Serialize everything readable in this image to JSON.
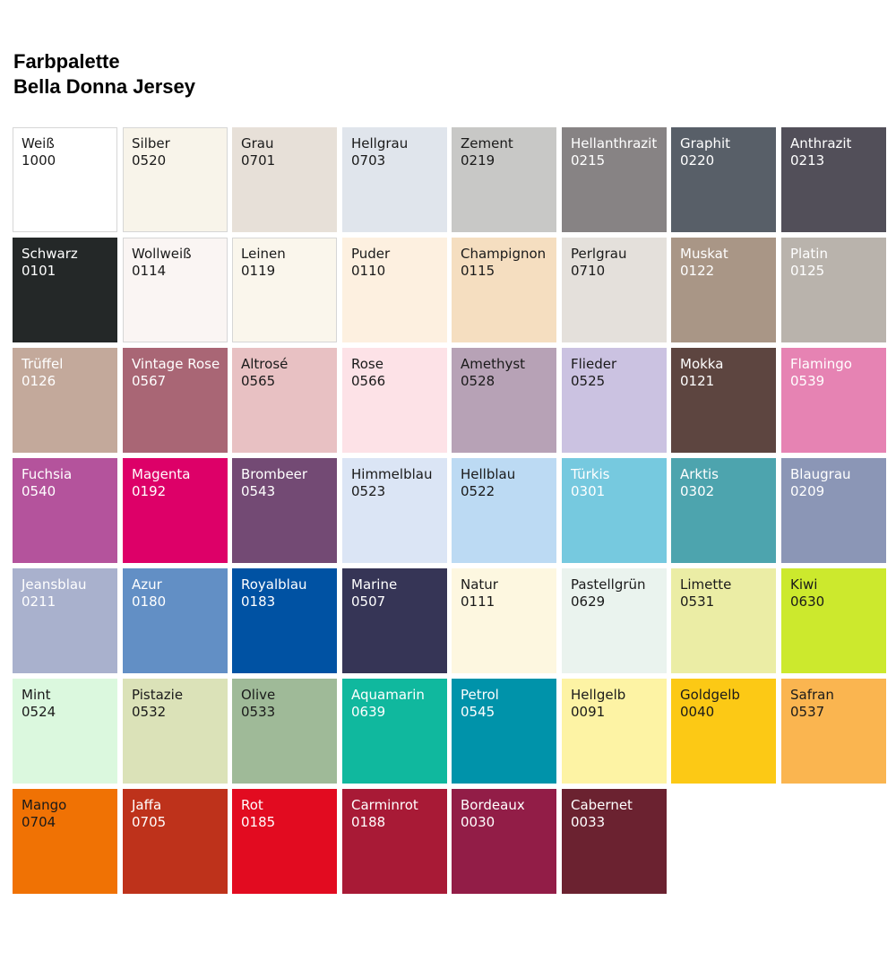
{
  "header": {
    "title_line1": "Farbpalette",
    "title_line2": "Bella Donna Jersey"
  },
  "swatches": [
    {
      "name": "Weiß",
      "code": "1000",
      "color": "#ffffff",
      "text": "#1a1a1a",
      "border": true
    },
    {
      "name": "Silber",
      "code": "0520",
      "color": "#f8f4ea",
      "text": "#1a1a1a",
      "border": true
    },
    {
      "name": "Grau",
      "code": "0701",
      "color": "#e7e0d8",
      "text": "#1a1a1a"
    },
    {
      "name": "Hellgrau",
      "code": "0703",
      "color": "#e0e5ec",
      "text": "#1a1a1a"
    },
    {
      "name": "Zement",
      "code": "0219",
      "color": "#c8c8c6",
      "text": "#1a1a1a"
    },
    {
      "name": "Hellanthrazit",
      "code": "0215",
      "color": "#878384",
      "text": "#ffffff"
    },
    {
      "name": "Graphit",
      "code": "0220",
      "color": "#585f68",
      "text": "#ffffff"
    },
    {
      "name": "Anthrazit",
      "code": "0213",
      "color": "#524f59",
      "text": "#ffffff"
    },
    {
      "name": "Schwarz",
      "code": "0101",
      "color": "#242828",
      "text": "#ffffff"
    },
    {
      "name": "Wollweiß",
      "code": "0114",
      "color": "#faf5f3",
      "text": "#1a1a1a",
      "border": true
    },
    {
      "name": "Leinen",
      "code": "0119",
      "color": "#faf6ec",
      "text": "#1a1a1a",
      "border": true
    },
    {
      "name": "Puder",
      "code": "0110",
      "color": "#fdf0e0",
      "text": "#1a1a1a"
    },
    {
      "name": "Champignon",
      "code": "0115",
      "color": "#f5dec0",
      "text": "#1a1a1a"
    },
    {
      "name": "Perlgrau",
      "code": "0710",
      "color": "#e4e0db",
      "text": "#1a1a1a"
    },
    {
      "name": "Muskat",
      "code": "0122",
      "color": "#a99686",
      "text": "#ffffff"
    },
    {
      "name": "Platin",
      "code": "0125",
      "color": "#b9b3ac",
      "text": "#ffffff"
    },
    {
      "name": "Trüffel",
      "code": "0126",
      "color": "#c3a99b",
      "text": "#ffffff"
    },
    {
      "name": "Vintage Rose",
      "code": "0567",
      "color": "#a96675",
      "text": "#ffffff"
    },
    {
      "name": "Altrosé",
      "code": "0565",
      "color": "#e8c1c3",
      "text": "#1a1a1a"
    },
    {
      "name": "Rose",
      "code": "0566",
      "color": "#fde2e7",
      "text": "#1a1a1a"
    },
    {
      "name": "Amethyst",
      "code": "0528",
      "color": "#b7a2b6",
      "text": "#1a1a1a"
    },
    {
      "name": "Flieder",
      "code": "0525",
      "color": "#cbc2e1",
      "text": "#1a1a1a"
    },
    {
      "name": "Mokka",
      "code": "0121",
      "color": "#5d4540",
      "text": "#ffffff"
    },
    {
      "name": "Flamingo",
      "code": "0539",
      "color": "#e683b3",
      "text": "#ffffff"
    },
    {
      "name": "Fuchsia",
      "code": "0540",
      "color": "#b4539c",
      "text": "#ffffff"
    },
    {
      "name": "Magenta",
      "code": "0192",
      "color": "#dd0068",
      "text": "#ffffff"
    },
    {
      "name": "Brombeer",
      "code": "0543",
      "color": "#734a74",
      "text": "#ffffff"
    },
    {
      "name": "Himmelblau",
      "code": "0523",
      "color": "#dbe5f5",
      "text": "#1a1a1a"
    },
    {
      "name": "Hellblau",
      "code": "0522",
      "color": "#bcdaf3",
      "text": "#1a1a1a"
    },
    {
      "name": "Türkis",
      "code": "0301",
      "color": "#76c9df",
      "text": "#ffffff"
    },
    {
      "name": "Arktis",
      "code": "0302",
      "color": "#4da4ae",
      "text": "#ffffff"
    },
    {
      "name": "Blaugrau",
      "code": "0209",
      "color": "#8b96b6",
      "text": "#ffffff"
    },
    {
      "name": "Jeansblau",
      "code": "0211",
      "color": "#a9b1cd",
      "text": "#ffffff"
    },
    {
      "name": "Azur",
      "code": "0180",
      "color": "#628fc5",
      "text": "#ffffff"
    },
    {
      "name": "Royalblau",
      "code": "0183",
      "color": "#0052a3",
      "text": "#ffffff"
    },
    {
      "name": "Marine",
      "code": "0507",
      "color": "#363556",
      "text": "#ffffff"
    },
    {
      "name": "Natur",
      "code": "0111",
      "color": "#fdf7e0",
      "text": "#1a1a1a"
    },
    {
      "name": "Pastellgrün",
      "code": "0629",
      "color": "#eaf3ee",
      "text": "#1a1a1a"
    },
    {
      "name": "Limette",
      "code": "0531",
      "color": "#ebeda5",
      "text": "#1a1a1a"
    },
    {
      "name": "Kiwi",
      "code": "0630",
      "color": "#cce92d",
      "text": "#1a1a1a"
    },
    {
      "name": "Mint",
      "code": "0524",
      "color": "#dbf8de",
      "text": "#1a1a1a"
    },
    {
      "name": "Pistazie",
      "code": "0532",
      "color": "#dbe2b8",
      "text": "#1a1a1a"
    },
    {
      "name": "Olive",
      "code": "0533",
      "color": "#9fba98",
      "text": "#1a1a1a"
    },
    {
      "name": "Aquamarin",
      "code": "0639",
      "color": "#10b89e",
      "text": "#ffffff"
    },
    {
      "name": "Petrol",
      "code": "0545",
      "color": "#0093aa",
      "text": "#ffffff"
    },
    {
      "name": "Hellgelb",
      "code": "0091",
      "color": "#fdf3a4",
      "text": "#1a1a1a"
    },
    {
      "name": "Goldgelb",
      "code": "0040",
      "color": "#fcc915",
      "text": "#1a1a1a"
    },
    {
      "name": "Safran",
      "code": "0537",
      "color": "#fab550",
      "text": "#1a1a1a"
    },
    {
      "name": "Mango",
      "code": "0704",
      "color": "#f07204",
      "text": "#1a1a1a"
    },
    {
      "name": "Jaffa",
      "code": "0705",
      "color": "#be321b",
      "text": "#ffffff"
    },
    {
      "name": "Rot",
      "code": "0185",
      "color": "#e20b20",
      "text": "#ffffff"
    },
    {
      "name": "Carminrot",
      "code": "0188",
      "color": "#a81a36",
      "text": "#ffffff"
    },
    {
      "name": "Bordeaux",
      "code": "0030",
      "color": "#921d47",
      "text": "#ffffff"
    },
    {
      "name": "Cabernet",
      "code": "0033",
      "color": "#6b2230",
      "text": "#ffffff"
    }
  ]
}
